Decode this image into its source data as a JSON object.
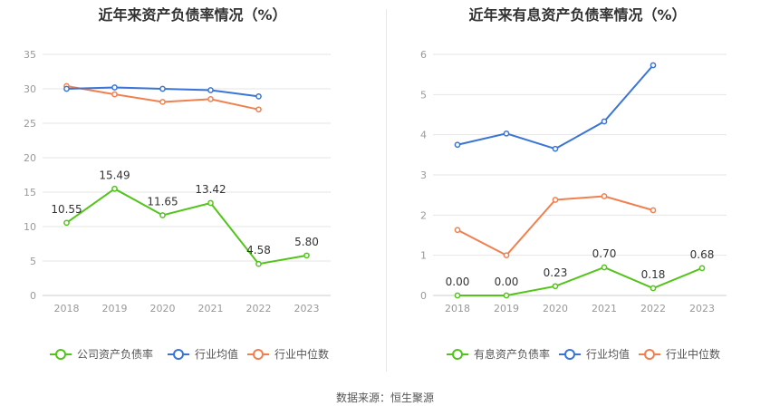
{
  "source": "数据来源：恒生聚源",
  "chart_data": [
    {
      "type": "line",
      "title": "近年来资产负债率情况（%）",
      "categories": [
        "2018",
        "2019",
        "2020",
        "2021",
        "2022",
        "2023"
      ],
      "ylim": [
        0,
        35
      ],
      "yticks": [
        0,
        5,
        10,
        15,
        20,
        25,
        30,
        35
      ],
      "grid": true,
      "legend_position": "bottom",
      "series": [
        {
          "name": "公司资产负债率",
          "color": "#52c41a",
          "values": [
            10.55,
            15.49,
            11.65,
            13.42,
            4.58,
            5.8
          ],
          "labels": [
            "10.55",
            "15.49",
            "11.65",
            "13.42",
            "4.58",
            "5.80"
          ]
        },
        {
          "name": "行业均值",
          "color": "#3a75d6",
          "values": [
            30.0,
            30.2,
            30.0,
            29.8,
            28.9,
            null
          ]
        },
        {
          "name": "行业中位数",
          "color": "#f08050",
          "values": [
            30.4,
            29.2,
            28.1,
            28.5,
            27.0,
            null
          ]
        }
      ]
    },
    {
      "type": "line",
      "title": "近年来有息资产负债率情况（%）",
      "categories": [
        "2018",
        "2019",
        "2020",
        "2021",
        "2022",
        "2023"
      ],
      "ylim": [
        0,
        6
      ],
      "yticks": [
        0,
        1,
        2,
        3,
        4,
        5,
        6
      ],
      "grid": true,
      "legend_position": "bottom",
      "series": [
        {
          "name": "有息资产负债率",
          "color": "#52c41a",
          "values": [
            0.0,
            0.0,
            0.23,
            0.7,
            0.18,
            0.68
          ],
          "labels": [
            "0.00",
            "0.00",
            "0.23",
            "0.70",
            "0.18",
            "0.68"
          ]
        },
        {
          "name": "行业均值",
          "color": "#3a75d6",
          "values": [
            3.75,
            4.03,
            3.65,
            4.33,
            5.73,
            null
          ]
        },
        {
          "name": "行业中位数",
          "color": "#f08050",
          "values": [
            1.63,
            1.0,
            2.38,
            2.47,
            2.12,
            null
          ]
        }
      ]
    }
  ]
}
